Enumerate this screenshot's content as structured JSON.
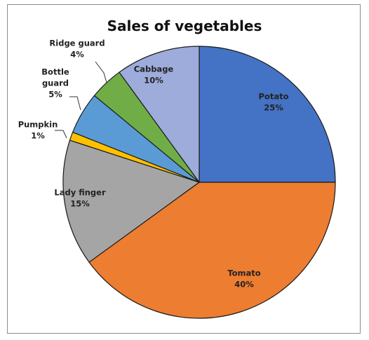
{
  "chart_data": {
    "type": "pie",
    "title": "Sales of vegetables",
    "slices": [
      {
        "label": "Potato",
        "label_lines": [
          "Potato"
        ],
        "value": 25,
        "percent_label": "25%",
        "color": "#4472c4"
      },
      {
        "label": "Tomato",
        "label_lines": [
          "Tomato"
        ],
        "value": 40,
        "percent_label": "40%",
        "color": "#ed7d31"
      },
      {
        "label": "Lady finger",
        "label_lines": [
          "Lady finger"
        ],
        "value": 15,
        "percent_label": "15%",
        "color": "#a5a5a5"
      },
      {
        "label": "Pumpkin",
        "label_lines": [
          "Pumpkin"
        ],
        "value": 1,
        "percent_label": "1%",
        "color": "#ffc000"
      },
      {
        "label": "Bottle guard",
        "label_lines": [
          "Bottle",
          "guard"
        ],
        "value": 5,
        "percent_label": "5%",
        "color": "#5b9bd5"
      },
      {
        "label": "Ridge guard",
        "label_lines": [
          "Ridge guard"
        ],
        "value": 4,
        "percent_label": "4%",
        "color": "#70ad47"
      },
      {
        "label": "Cabbage",
        "label_lines": [
          "Cabbage"
        ],
        "value": 10,
        "percent_label": "10%",
        "color": "#9dacdb"
      }
    ],
    "legend": "none"
  }
}
